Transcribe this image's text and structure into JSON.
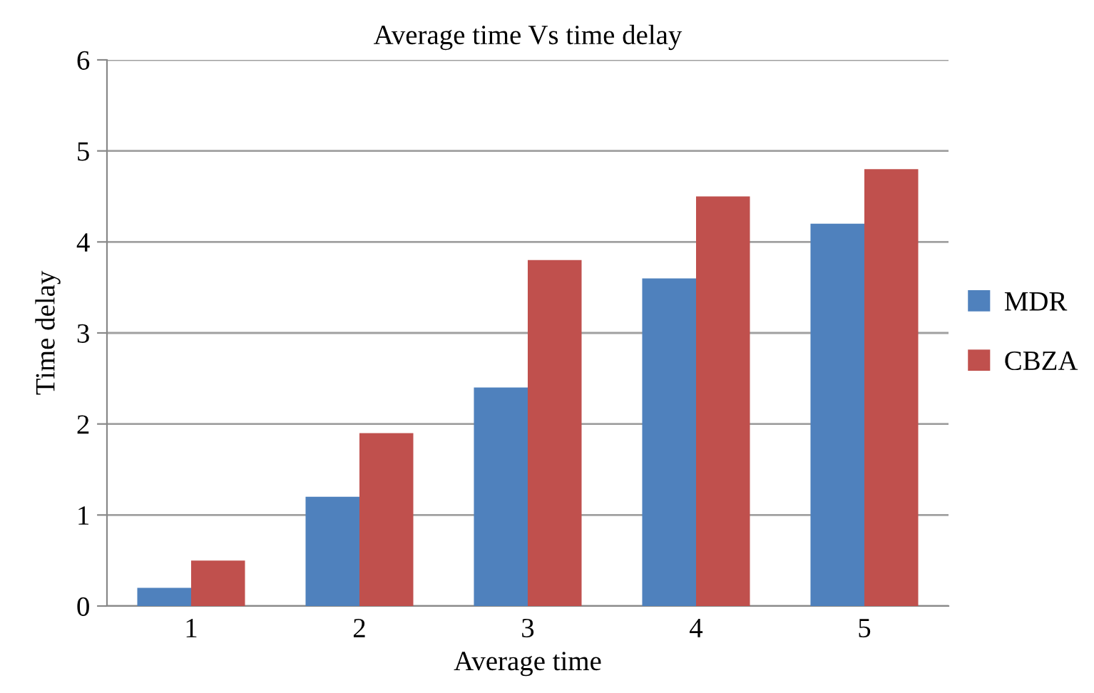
{
  "chart_data": {
    "type": "bar",
    "title": "Average time Vs time delay",
    "xlabel": "Average time",
    "ylabel": "Time delay",
    "categories": [
      "1",
      "2",
      "3",
      "4",
      "5"
    ],
    "series": [
      {
        "name": "MDR",
        "color": "#4f81bd",
        "values": [
          0.2,
          1.2,
          2.4,
          3.6,
          4.2
        ]
      },
      {
        "name": "CBZA",
        "color": "#c0504d",
        "values": [
          0.5,
          1.9,
          3.8,
          4.5,
          4.8
        ]
      }
    ],
    "ylim": [
      0,
      6
    ],
    "yticks": [
      0,
      1,
      2,
      3,
      4,
      5,
      6
    ],
    "grid": "y",
    "legend": "right"
  }
}
